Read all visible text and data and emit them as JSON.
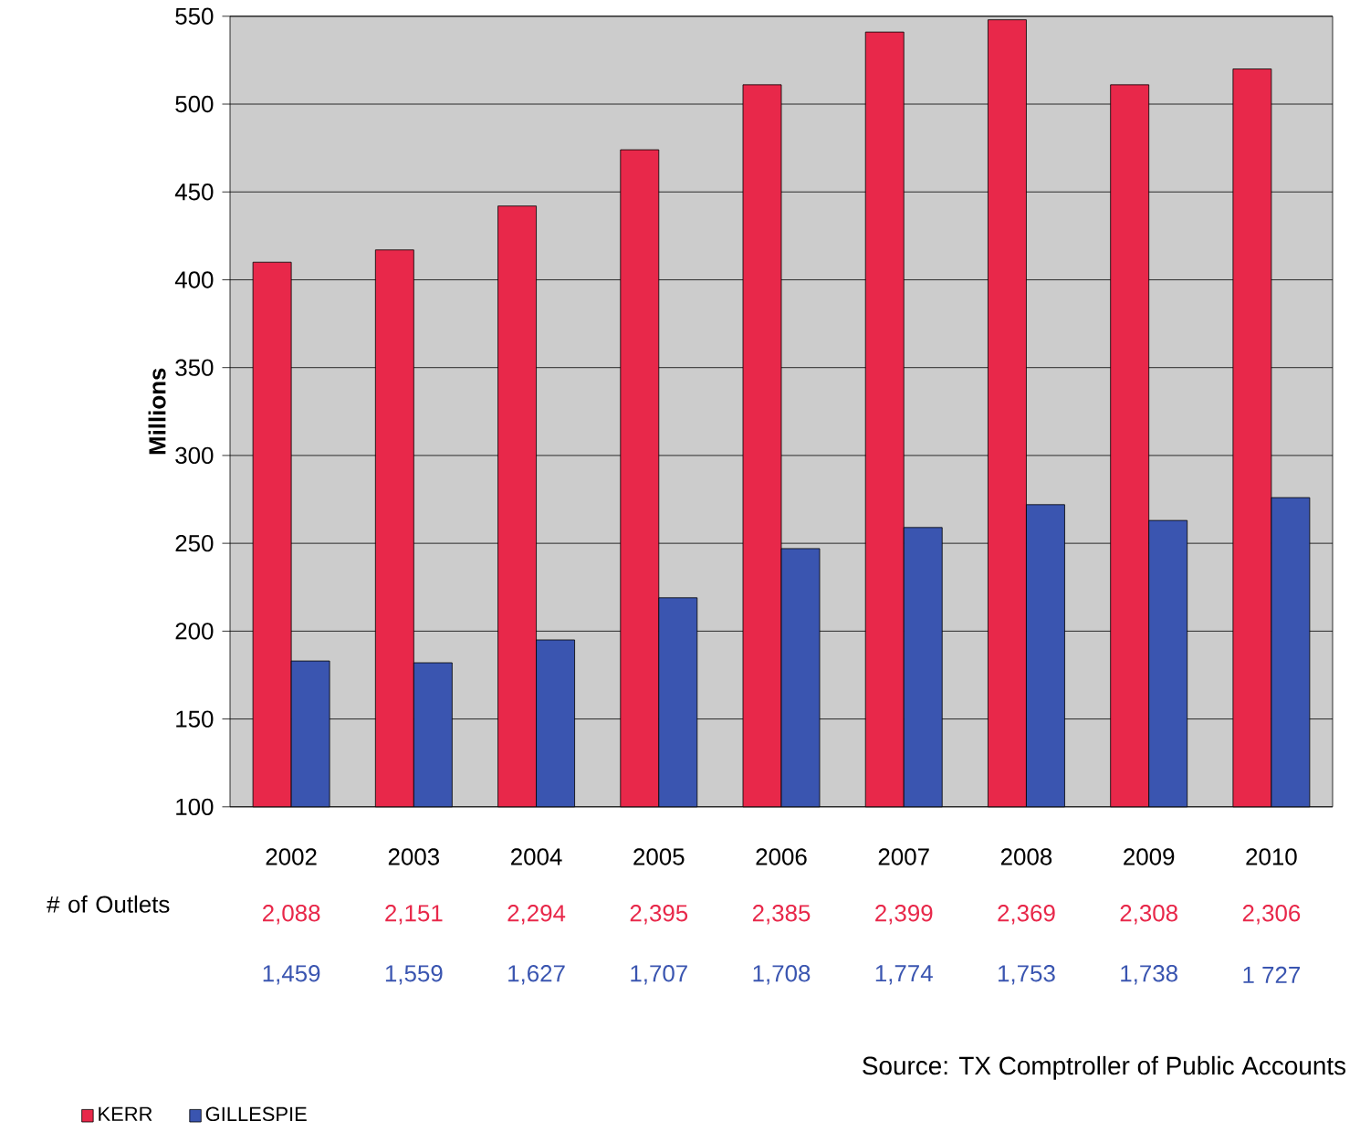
{
  "chart_data": {
    "type": "bar",
    "ylabel": "**Millions**",
    "categories": [
      "2002",
      "2003",
      "2004",
      "2005",
      "2006",
      "2007",
      "2008",
      "2009",
      "2010"
    ],
    "series": [
      {
        "name": "KERR",
        "color": "#e8284a",
        "values": [
          410,
          417,
          442,
          474,
          511,
          541,
          548,
          511,
          520
        ]
      },
      {
        "name": "GILLESPIE",
        "color": "#3a55b0",
        "values": [
          183,
          182,
          195,
          219,
          247,
          259,
          272,
          263,
          276
        ]
      }
    ],
    "ylim": [
      100,
      550
    ],
    "yticks": [
      100,
      150,
      200,
      250,
      300,
      350,
      400,
      450,
      500,
      550
    ],
    "grid": "y",
    "legend": "bottom left",
    "annotations": [
      "# of Outlets",
      "2,088",
      "2,151",
      "2,294",
      "2,395",
      "2,385",
      "2,399",
      "2,369",
      "2,308",
      "2,306",
      "1,459",
      "1,559",
      "1,627",
      "1,707",
      "1,708",
      "1,774",
      "1,753",
      "1,738",
      "1 727",
      "Source: TX Comptroller of Public Accounts"
    ]
  }
}
